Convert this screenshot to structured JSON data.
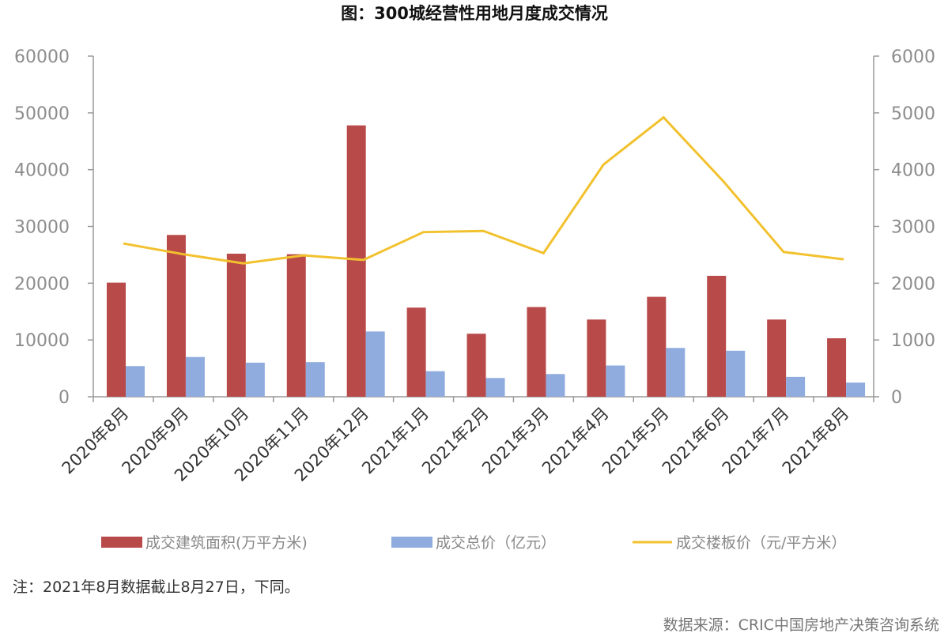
{
  "chart_data": {
    "type": "bar+line",
    "title": "图：300城经营性用地月度成交情况",
    "categories": [
      "2020年8月",
      "2020年9月",
      "2020年10月",
      "2020年11月",
      "2020年12月",
      "2021年1月",
      "2021年2月",
      "2021年3月",
      "2021年4月",
      "2021年5月",
      "2021年6月",
      "2021年7月",
      "2021年8月"
    ],
    "series": [
      {
        "name": "成交建筑面积(万平方米)",
        "type": "bar",
        "axis": "left",
        "color": "#b84a4a",
        "values": [
          20100,
          28500,
          25200,
          25100,
          47800,
          15700,
          11100,
          15800,
          13600,
          17600,
          21300,
          13600,
          10300
        ]
      },
      {
        "name": "成交总价（亿元）",
        "type": "bar",
        "axis": "left",
        "color": "#90acdf",
        "values": [
          5400,
          7000,
          6000,
          6100,
          11500,
          4500,
          3300,
          4000,
          5500,
          8600,
          8100,
          3500,
          2500
        ]
      },
      {
        "name": "成交楼板价（元/平方米）",
        "type": "line",
        "axis": "right",
        "color": "#f2c12e",
        "values": [
          2700,
          2510,
          2350,
          2490,
          2410,
          2900,
          2920,
          2530,
          4090,
          4920,
          3790,
          2550,
          2420
        ]
      }
    ],
    "ylim_left": [
      0,
      60000
    ],
    "ylim_right": [
      0,
      6000
    ],
    "yticks_left": [
      "0",
      "10000",
      "20000",
      "30000",
      "40000",
      "50000",
      "60000"
    ],
    "yticks_right": [
      "0",
      "1000",
      "2000",
      "3000",
      "4000",
      "5000",
      "6000"
    ],
    "legend_position": "bottom",
    "grid": false
  },
  "note": "注：2021年8月数据截止8月27日，下同。",
  "source": "数据来源：CRIC中国房地产决策咨询系统"
}
